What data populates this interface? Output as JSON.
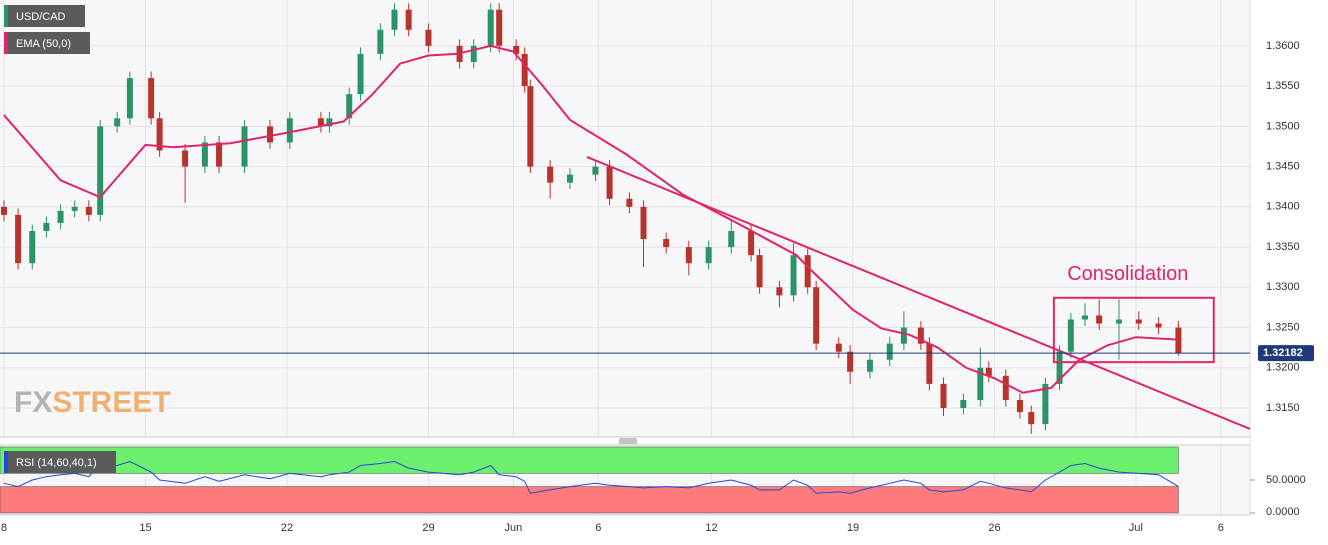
{
  "chart_data": {
    "type": "candlestick",
    "title": "USD/CAD",
    "up_color": "#2a9466",
    "down_color": "#b8332b",
    "x": [
      0,
      0.5,
      1,
      1.5,
      2,
      2.5,
      3,
      3.4,
      4,
      4.45,
      5.2,
      5.5,
      6.4,
      7.1,
      7.6,
      8.5,
      9.4,
      10.1,
      11.2,
      11.5,
      12.2,
      12.6,
      13.3,
      13.8,
      14.3,
      15,
      16.1,
      16.6,
      17.2,
      17.5,
      18.1,
      18.4,
      18.6,
      19.3,
      20,
      20.9,
      21.4,
      22.1,
      22.6,
      23.4,
      24.2,
      24.9,
      25.7,
      26.4,
      26.7,
      27.4,
      27.9,
      28.4,
      28.7,
      29.5,
      29.9,
      30.6,
      31.3,
      31.8,
      32.4,
      32.7,
      33.2,
      33.9,
      34.5,
      34.8,
      35.4,
      35.9,
      36.3,
      36.8,
      37.3,
      37.7,
      38.2,
      38.7,
      39.4,
      40.1,
      40.8,
      41.5
    ],
    "open": [
      1.34,
      1.339,
      1.333,
      1.337,
      1.338,
      1.3395,
      1.34,
      1.339,
      1.35,
      1.351,
      1.356,
      1.351,
      1.347,
      1.345,
      1.348,
      1.345,
      1.35,
      1.348,
      1.351,
      1.35,
      1.351,
      1.354,
      1.359,
      1.362,
      1.3645,
      1.362,
      1.36,
      1.358,
      1.36,
      1.3645,
      1.36,
      1.359,
      1.355,
      1.345,
      1.343,
      1.344,
      1.345,
      1.341,
      1.34,
      1.336,
      1.335,
      1.333,
      1.335,
      1.337,
      1.334,
      1.33,
      1.329,
      1.334,
      1.33,
      1.323,
      1.322,
      1.3195,
      1.321,
      1.323,
      1.325,
      1.323,
      1.318,
      1.315,
      1.316,
      1.32,
      1.319,
      1.316,
      1.3145,
      1.313,
      1.318,
      1.322,
      1.326,
      1.3265,
      1.3255,
      1.326,
      1.3255,
      1.325
    ],
    "high": [
      1.3408,
      1.3398,
      1.3378,
      1.3388,
      1.3403,
      1.3408,
      1.3408,
      1.3508,
      1.3518,
      1.3568,
      1.3568,
      1.3518,
      1.3478,
      1.3488,
      1.3488,
      1.3508,
      1.3508,
      1.3518,
      1.3518,
      1.3518,
      1.3548,
      1.3598,
      1.3628,
      1.3653,
      1.3653,
      1.3628,
      1.3608,
      1.3608,
      1.3653,
      1.3653,
      1.3608,
      1.3598,
      1.3558,
      1.3458,
      1.3448,
      1.3458,
      1.3458,
      1.3418,
      1.3408,
      1.3368,
      1.3358,
      1.3358,
      1.3385,
      1.3378,
      1.3348,
      1.3308,
      1.3355,
      1.3348,
      1.3308,
      1.3238,
      1.3228,
      1.3218,
      1.3238,
      1.327,
      1.3258,
      1.3238,
      1.3188,
      1.3168,
      1.3225,
      1.3208,
      1.3198,
      1.3168,
      1.3153,
      1.3188,
      1.3228,
      1.3268,
      1.328,
      1.3285,
      1.3285,
      1.327,
      1.3263,
      1.3258
    ],
    "low": [
      1.3382,
      1.3322,
      1.3322,
      1.3362,
      1.3372,
      1.3387,
      1.3382,
      1.3382,
      1.3492,
      1.3502,
      1.3502,
      1.3462,
      1.3405,
      1.3442,
      1.3442,
      1.3442,
      1.3472,
      1.3472,
      1.3492,
      1.3492,
      1.3502,
      1.3532,
      1.3582,
      1.3612,
      1.3612,
      1.3592,
      1.3572,
      1.3572,
      1.3592,
      1.3592,
      1.3582,
      1.3542,
      1.3442,
      1.341,
      1.3422,
      1.3432,
      1.3402,
      1.3392,
      1.3325,
      1.3342,
      1.3315,
      1.3322,
      1.3342,
      1.3332,
      1.3292,
      1.3275,
      1.3282,
      1.3292,
      1.3222,
      1.3212,
      1.318,
      1.3187,
      1.3202,
      1.3222,
      1.3222,
      1.3172,
      1.314,
      1.3142,
      1.3152,
      1.3182,
      1.3152,
      1.3137,
      1.3118,
      1.3122,
      1.3172,
      1.3212,
      1.3252,
      1.3247,
      1.321,
      1.3247,
      1.3242,
      1.3215
    ],
    "close": [
      1.339,
      1.333,
      1.337,
      1.338,
      1.3395,
      1.34,
      1.339,
      1.35,
      1.351,
      1.356,
      1.351,
      1.347,
      1.345,
      1.348,
      1.345,
      1.35,
      1.348,
      1.351,
      1.35,
      1.351,
      1.354,
      1.359,
      1.362,
      1.3645,
      1.362,
      1.36,
      1.358,
      1.36,
      1.3645,
      1.36,
      1.359,
      1.355,
      1.345,
      1.343,
      1.344,
      1.345,
      1.341,
      1.34,
      1.336,
      1.335,
      1.333,
      1.335,
      1.337,
      1.334,
      1.33,
      1.329,
      1.334,
      1.33,
      1.323,
      1.322,
      1.3195,
      1.321,
      1.323,
      1.325,
      1.323,
      1.318,
      1.315,
      1.316,
      1.32,
      1.319,
      1.316,
      1.3145,
      1.313,
      1.318,
      1.322,
      1.326,
      1.3265,
      1.3255,
      1.326,
      1.3255,
      1.325,
      1.3218
    ],
    "xlim": [
      -0.14,
      44.03
    ],
    "xticks": [
      {
        "value": 0,
        "label": "8"
      },
      {
        "value": 5,
        "label": "15"
      },
      {
        "value": 10,
        "label": "22"
      },
      {
        "value": 15,
        "label": "29"
      },
      {
        "value": 18,
        "label": "Jun"
      },
      {
        "value": 21,
        "label": "6"
      },
      {
        "value": 25,
        "label": "12"
      },
      {
        "value": 30,
        "label": "19"
      },
      {
        "value": 35,
        "label": "26"
      },
      {
        "value": 40,
        "label": "Jul"
      },
      {
        "value": 43,
        "label": "6"
      }
    ],
    "ylim": [
      1.3114,
      1.3657
    ],
    "yticks": [
      {
        "value": 1.315,
        "label": "1.3150"
      },
      {
        "value": 1.32,
        "label": "1.3200"
      },
      {
        "value": 1.325,
        "label": "1.3250"
      },
      {
        "value": 1.33,
        "label": "1.3300"
      },
      {
        "value": 1.335,
        "label": "1.3350"
      },
      {
        "value": 1.34,
        "label": "1.3400"
      },
      {
        "value": 1.345,
        "label": "1.3450"
      },
      {
        "value": 1.35,
        "label": "1.3500"
      },
      {
        "value": 1.355,
        "label": "1.3550"
      },
      {
        "value": 1.36,
        "label": "1.3600"
      }
    ],
    "grid": true,
    "ema": {
      "name": "EMA (50,0)",
      "color": "#e2236b",
      "x": [
        0,
        2,
        3.4,
        5,
        6,
        8,
        10,
        12,
        13,
        14,
        15,
        16,
        17.2,
        18,
        19,
        20,
        22,
        24,
        26,
        28,
        28.5,
        30,
        31,
        32,
        33,
        34,
        35,
        36,
        37,
        38,
        39,
        40,
        41.5
      ],
      "values": [
        1.3514,
        1.3433,
        1.3412,
        1.3477,
        1.3474,
        1.3479,
        1.3492,
        1.3506,
        1.3539,
        1.3578,
        1.3588,
        1.359,
        1.36,
        1.3593,
        1.3552,
        1.3508,
        1.3465,
        1.3415,
        1.3378,
        1.334,
        1.3322,
        1.3272,
        1.3249,
        1.3241,
        1.3225,
        1.32,
        1.3187,
        1.3169,
        1.3175,
        1.321,
        1.3228,
        1.3238,
        1.3235
      ]
    },
    "trendline": {
      "color": "#e2236b",
      "x": [
        20.6,
        44.03
      ],
      "values": [
        1.3462,
        1.3124
      ]
    },
    "box": {
      "label": "Consolidation",
      "color": "#e2236b",
      "x": [
        37.1,
        42.75
      ],
      "values": [
        1.3287,
        1.3207
      ]
    },
    "last_price": 1.32182,
    "last_price_color": "#1f3a7a",
    "watermark": [
      "FX",
      "STREET"
    ],
    "rsi": {
      "name": "RSI (14,60,40,1)",
      "color": "#2448d8",
      "values": [
        45,
        40,
        50,
        55,
        58,
        60,
        55,
        75,
        72,
        78,
        62,
        50,
        45,
        55,
        48,
        58,
        52,
        60,
        55,
        58,
        62,
        72,
        75,
        78,
        68,
        62,
        58,
        62,
        72,
        58,
        55,
        48,
        30,
        35,
        40,
        45,
        42,
        40,
        38,
        40,
        38,
        45,
        50,
        42,
        35,
        35,
        50,
        42,
        30,
        32,
        30,
        38,
        45,
        50,
        45,
        35,
        32,
        35,
        48,
        45,
        38,
        35,
        32,
        50,
        62,
        72,
        75,
        68,
        62,
        60,
        58,
        40
      ],
      "ylim": [
        0,
        100
      ],
      "yticks": [
        {
          "value": 0,
          "label": "0.0000"
        },
        {
          "value": 50,
          "label": "50.0000"
        }
      ],
      "upper": 60,
      "lower": 40,
      "upper_color": "#6df06d",
      "lower_color": "#ff7b7b"
    }
  }
}
